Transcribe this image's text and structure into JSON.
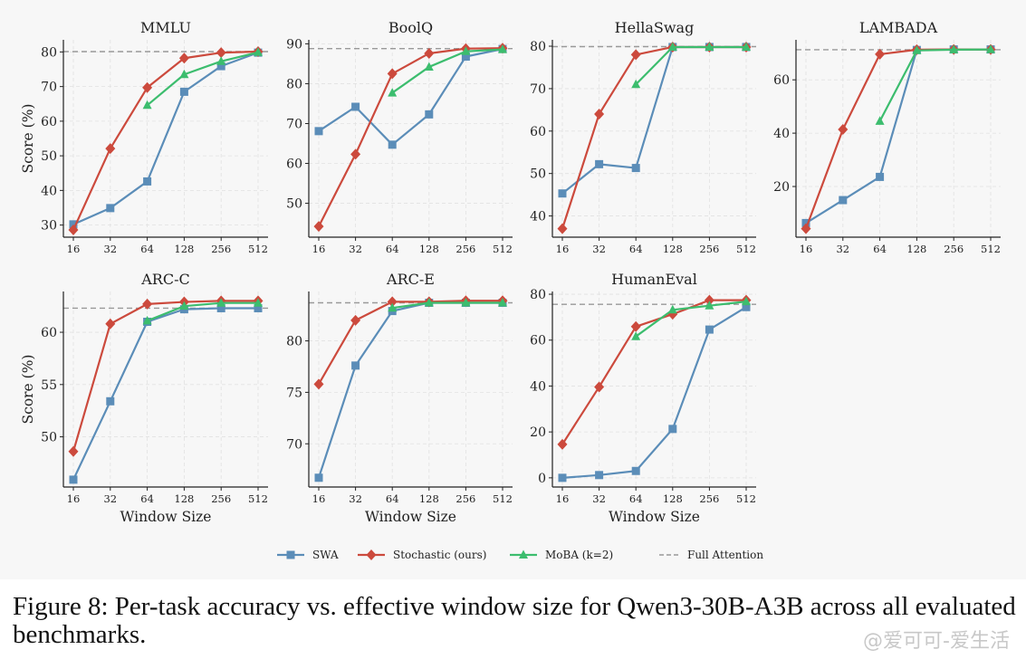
{
  "caption": "Figure 8: Per-task accuracy vs. effective window size for Qwen3-30B-A3B across all evaluated benchmarks.",
  "watermark": "@爱可可-爱生活",
  "legend": {
    "placement": "bottom-center",
    "entries": [
      {
        "key": "swa",
        "label": "SWA",
        "color": "#5b8db8",
        "marker": "square"
      },
      {
        "key": "stochastic",
        "label": "Stochastic (ours)",
        "color": "#cc4a3d",
        "marker": "diamond"
      },
      {
        "key": "moba",
        "label": "MoBA (k=2)",
        "color": "#3cbd6e",
        "marker": "triangle"
      },
      {
        "key": "full",
        "label": "Full Attention",
        "color": "#999999",
        "marker": "dashed-line"
      }
    ]
  },
  "chart_data": [
    {
      "type": "line",
      "title": "MMLU",
      "xlabel": "",
      "ylabel": "Score (%)",
      "categories": [
        "16",
        "32",
        "64",
        "128",
        "256",
        "512"
      ],
      "ylim": [
        26.5,
        83.5
      ],
      "yticks": [
        30,
        40,
        50,
        60,
        70,
        80
      ],
      "grid": true,
      "full_attention": 80.1,
      "series": [
        {
          "name": "SWA",
          "values": [
            30.2,
            34.9,
            42.6,
            68.5,
            75.9,
            79.8
          ]
        },
        {
          "name": "Stochastic (ours)",
          "values": [
            28.6,
            52.1,
            69.7,
            78.2,
            79.8,
            80.1
          ]
        },
        {
          "name": "MoBA (k=2)",
          "values": [
            null,
            null,
            64.6,
            73.5,
            77.3,
            79.9
          ]
        }
      ]
    },
    {
      "type": "line",
      "title": "BoolQ",
      "xlabel": "",
      "ylabel": "",
      "categories": [
        "16",
        "32",
        "64",
        "128",
        "256",
        "512"
      ],
      "ylim": [
        41.5,
        91.0
      ],
      "yticks": [
        50,
        60,
        70,
        80,
        90
      ],
      "grid": true,
      "full_attention": 88.8,
      "series": [
        {
          "name": "SWA",
          "values": [
            68.1,
            74.2,
            64.7,
            72.3,
            86.8,
            88.7
          ]
        },
        {
          "name": "Stochastic (ours)",
          "values": [
            44.2,
            62.3,
            82.5,
            87.6,
            88.8,
            88.9
          ]
        },
        {
          "name": "MoBA (k=2)",
          "values": [
            null,
            null,
            77.7,
            84.2,
            88.1,
            88.6
          ]
        }
      ]
    },
    {
      "type": "line",
      "title": "HellaSwag",
      "xlabel": "",
      "ylabel": "",
      "categories": [
        "16",
        "32",
        "64",
        "128",
        "256",
        "512"
      ],
      "ylim": [
        35.0,
        81.5
      ],
      "yticks": [
        40,
        50,
        60,
        70,
        80
      ],
      "grid": true,
      "full_attention": 79.9,
      "series": [
        {
          "name": "SWA",
          "values": [
            45.3,
            52.2,
            51.3,
            79.8,
            79.8,
            79.8
          ]
        },
        {
          "name": "Stochastic (ours)",
          "values": [
            37.0,
            64.0,
            78.0,
            79.8,
            79.8,
            79.8
          ]
        },
        {
          "name": "MoBA (k=2)",
          "values": [
            null,
            null,
            71.0,
            79.8,
            79.8,
            79.8
          ]
        }
      ]
    },
    {
      "type": "line",
      "title": "LAMBADA",
      "xlabel": "",
      "ylabel": "",
      "categories": [
        "16",
        "32",
        "64",
        "128",
        "256",
        "512"
      ],
      "ylim": [
        1.0,
        75.0
      ],
      "yticks": [
        20,
        40,
        60
      ],
      "grid": true,
      "full_attention": 71.3,
      "series": [
        {
          "name": "SWA",
          "values": [
            6.3,
            14.9,
            23.6,
            71.2,
            71.4,
            71.4
          ]
        },
        {
          "name": "Stochastic (ours)",
          "values": [
            4.2,
            41.4,
            69.6,
            71.3,
            71.4,
            71.4
          ]
        },
        {
          "name": "MoBA (k=2)",
          "values": [
            null,
            null,
            44.5,
            71.0,
            71.3,
            71.4
          ]
        }
      ]
    },
    {
      "type": "line",
      "title": "ARC-C",
      "xlabel": "Window Size",
      "ylabel": "Score (%)",
      "categories": [
        "16",
        "32",
        "64",
        "128",
        "256",
        "512"
      ],
      "ylim": [
        45.2,
        63.9
      ],
      "yticks": [
        50,
        55,
        60
      ],
      "grid": true,
      "full_attention": 62.3,
      "series": [
        {
          "name": "SWA",
          "values": [
            45.9,
            53.4,
            61.0,
            62.2,
            62.3,
            62.3
          ]
        },
        {
          "name": "Stochastic (ours)",
          "values": [
            48.6,
            60.8,
            62.7,
            62.9,
            63.0,
            63.0
          ]
        },
        {
          "name": "MoBA (k=2)",
          "values": [
            null,
            null,
            61.1,
            62.5,
            62.8,
            62.8
          ]
        }
      ]
    },
    {
      "type": "line",
      "title": "ARC-E",
      "xlabel": "Window Size",
      "ylabel": "",
      "categories": [
        "16",
        "32",
        "64",
        "128",
        "256",
        "512"
      ],
      "ylim": [
        65.8,
        84.8
      ],
      "yticks": [
        70,
        75,
        80
      ],
      "grid": true,
      "full_attention": 83.7,
      "series": [
        {
          "name": "SWA",
          "values": [
            66.7,
            77.6,
            82.9,
            83.7,
            83.7,
            83.7
          ]
        },
        {
          "name": "Stochastic (ours)",
          "values": [
            75.8,
            82.0,
            83.8,
            83.8,
            83.9,
            83.9
          ]
        },
        {
          "name": "MoBA (k=2)",
          "values": [
            null,
            null,
            83.2,
            83.7,
            83.7,
            83.7
          ]
        }
      ]
    },
    {
      "type": "line",
      "title": "HumanEval",
      "xlabel": "Window Size",
      "ylabel": "",
      "categories": [
        "16",
        "32",
        "64",
        "128",
        "256",
        "512"
      ],
      "ylim": [
        -4.0,
        81.2
      ],
      "yticks": [
        0,
        20,
        40,
        60,
        80
      ],
      "grid": true,
      "full_attention": 75.6,
      "series": [
        {
          "name": "SWA",
          "values": [
            0.0,
            1.2,
            3.0,
            21.3,
            64.6,
            74.4
          ]
        },
        {
          "name": "Stochastic (ours)",
          "values": [
            14.6,
            39.6,
            65.9,
            71.3,
            77.4,
            77.4
          ]
        },
        {
          "name": "MoBA (k=2)",
          "values": [
            null,
            null,
            61.6,
            73.2,
            75.0,
            76.8
          ]
        }
      ]
    }
  ]
}
